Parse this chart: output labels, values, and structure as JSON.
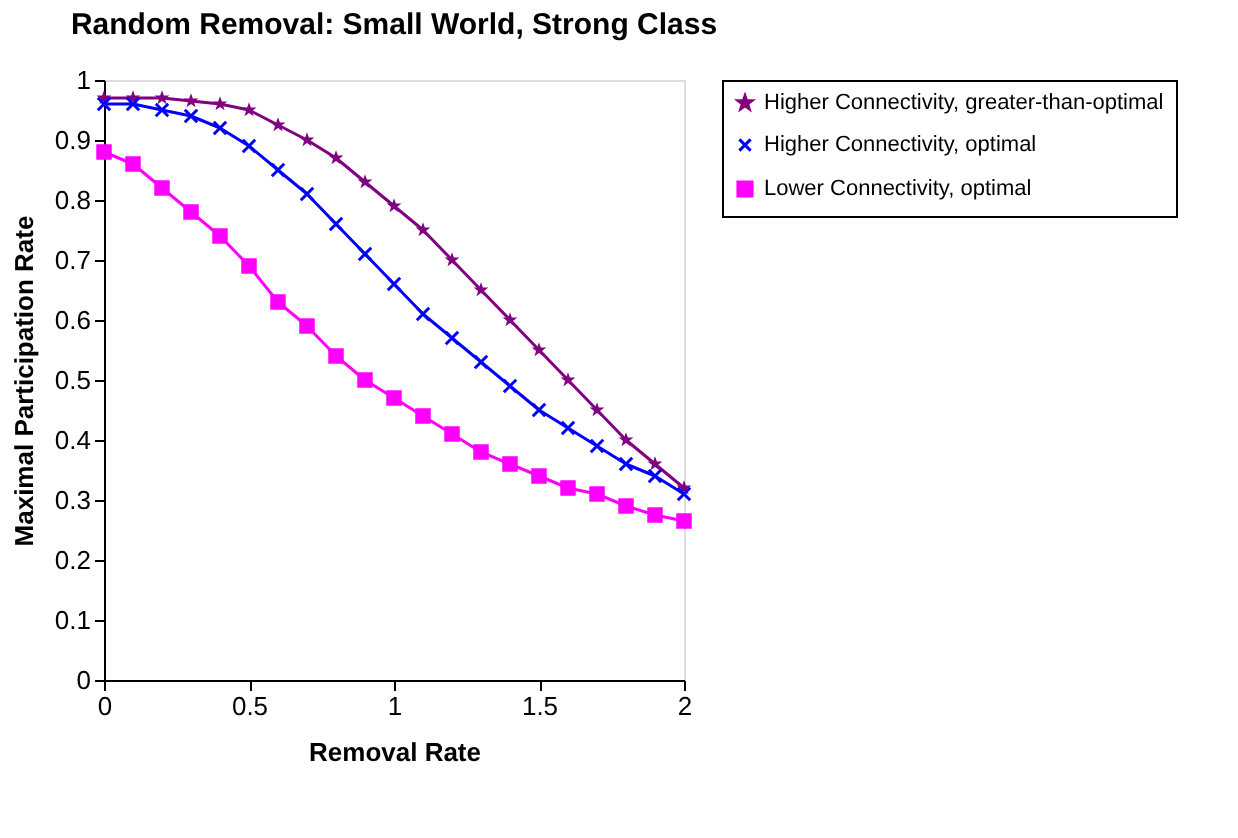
{
  "chart_data": {
    "type": "line",
    "title": "Random Removal: Small World, Strong Class",
    "xlabel": "Removal Rate",
    "ylabel": "Maximal Participation Rate",
    "x": [
      0,
      0.1,
      0.2,
      0.3,
      0.4,
      0.5,
      0.6,
      0.7,
      0.8,
      0.9,
      1.0,
      1.1,
      1.2,
      1.3,
      1.4,
      1.5,
      1.6,
      1.7,
      1.8,
      1.9,
      2.0
    ],
    "series": [
      {
        "name": "Higher Connectivity, greater-than-optimal",
        "color": "#800080",
        "marker": "star",
        "values": [
          0.97,
          0.97,
          0.97,
          0.965,
          0.96,
          0.95,
          0.925,
          0.9,
          0.87,
          0.83,
          0.79,
          0.75,
          0.7,
          0.65,
          0.6,
          0.55,
          0.5,
          0.45,
          0.4,
          0.36,
          0.32
        ]
      },
      {
        "name": "Higher Connectivity, optimal",
        "color": "#0000ff",
        "marker": "cross",
        "values": [
          0.96,
          0.96,
          0.95,
          0.94,
          0.92,
          0.89,
          0.85,
          0.81,
          0.76,
          0.71,
          0.66,
          0.61,
          0.57,
          0.53,
          0.49,
          0.45,
          0.42,
          0.39,
          0.36,
          0.34,
          0.31
        ]
      },
      {
        "name": "Lower Connectivity, optimal",
        "color": "#ff00ff",
        "marker": "square",
        "values": [
          0.88,
          0.86,
          0.82,
          0.78,
          0.74,
          0.69,
          0.63,
          0.59,
          0.54,
          0.5,
          0.47,
          0.44,
          0.41,
          0.38,
          0.36,
          0.34,
          0.32,
          0.31,
          0.29,
          0.275,
          0.265
        ]
      }
    ],
    "xlim": [
      0,
      2
    ],
    "xticks": [
      0,
      0.5,
      1,
      1.5,
      2
    ],
    "ylim": [
      0,
      1
    ],
    "yticks": [
      0,
      0.1,
      0.2,
      0.3,
      0.4,
      0.5,
      0.6,
      0.7,
      0.8,
      0.9,
      1
    ],
    "grid": false,
    "legend": "right",
    "line_style": "solid"
  }
}
